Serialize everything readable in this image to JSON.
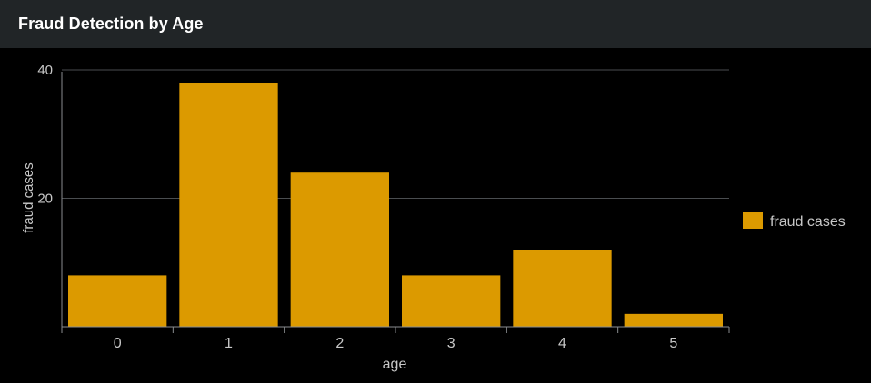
{
  "panel": {
    "title": "Fraud Detection by Age"
  },
  "colors": {
    "background": "#000000",
    "header": "#212527",
    "bar": "#dc9a00",
    "grid": "#4a4d50",
    "axis": "#8a8d90",
    "text": "#c8c8c8"
  },
  "chart_data": {
    "type": "bar",
    "title": "Fraud Detection by Age",
    "xlabel": "age",
    "ylabel": "fraud cases",
    "categories": [
      "0",
      "1",
      "2",
      "3",
      "4",
      "5"
    ],
    "series": [
      {
        "name": "fraud cases",
        "values": [
          8,
          38,
          24,
          8,
          12,
          2
        ]
      }
    ],
    "ylim": [
      0,
      40
    ],
    "yticks": [
      20,
      40
    ],
    "grid": true,
    "legend": "right"
  }
}
